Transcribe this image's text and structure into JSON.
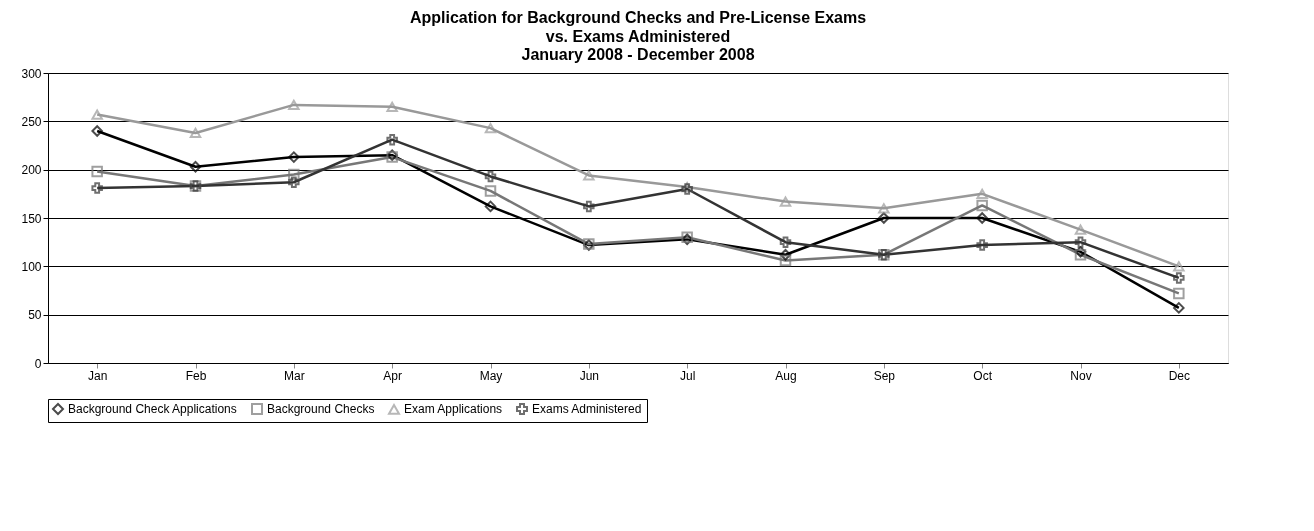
{
  "chart_data": {
    "type": "line",
    "title": "Application for Background Checks and Pre-License Exams",
    "subtitle": "vs. Exams Administered",
    "annotations": [
      "January 2008 - December 2008"
    ],
    "categories": [
      "Jan",
      "Feb",
      "Mar",
      "Apr",
      "May",
      "Jun",
      "Jul",
      "Aug",
      "Sep",
      "Oct",
      "Nov",
      "Dec"
    ],
    "series": [
      {
        "name": "Background Check Applications",
        "color": "#000000",
        "marker": "diamond",
        "values": [
          240,
          203,
          213,
          215,
          162,
          122,
          128,
          112,
          150,
          150,
          115,
          57
        ]
      },
      {
        "name": "Background Checks",
        "color": "#777777",
        "marker": "square",
        "values": [
          198,
          183,
          195,
          213,
          178,
          123,
          130,
          106,
          112,
          163,
          112,
          72
        ]
      },
      {
        "name": "Exam Applications",
        "color": "#999999",
        "marker": "triangle",
        "values": [
          257,
          238,
          267,
          265,
          243,
          194,
          182,
          167,
          160,
          175,
          138,
          100
        ]
      },
      {
        "name": "Exams Administered",
        "color": "#333333",
        "marker": "cross",
        "values": [
          181,
          183,
          187,
          231,
          193,
          162,
          180,
          125,
          112,
          122,
          125,
          88
        ]
      }
    ],
    "ylim": [
      0,
      300
    ],
    "yticks": [
      0,
      50,
      100,
      150,
      200,
      250,
      300
    ],
    "grid": "y",
    "legend": "bottom",
    "line_style": "solid"
  }
}
